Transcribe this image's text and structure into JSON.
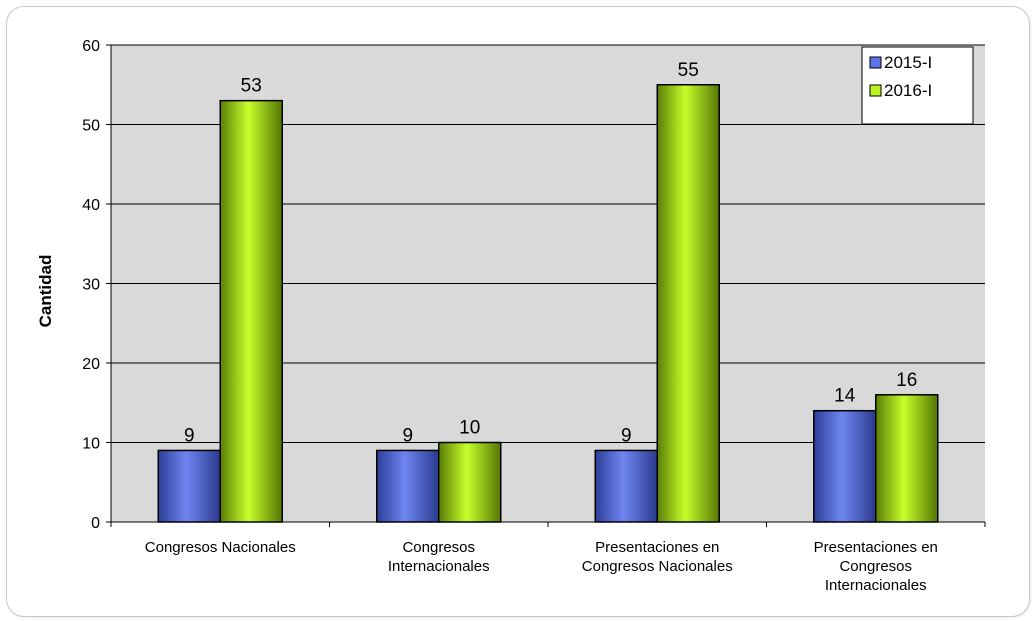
{
  "chart_data": {
    "type": "bar",
    "ylabel": "Cantidad",
    "xlabel": "",
    "ylim": [
      0,
      60
    ],
    "yticks": [
      0,
      10,
      20,
      30,
      40,
      50,
      60
    ],
    "grid": true,
    "legend_position": "top-right",
    "categories": [
      [
        "Congresos Nacionales"
      ],
      [
        "Congresos",
        "Internacionales"
      ],
      [
        "Presentaciones en",
        "Congresos Nacionales"
      ],
      [
        "Presentaciones en",
        "Congresos",
        "Internacionales"
      ]
    ],
    "series": [
      {
        "name": "2015-I",
        "values": [
          9,
          9,
          9,
          14
        ],
        "color": "#5b74e8"
      },
      {
        "name": "2016-I",
        "values": [
          53,
          10,
          55,
          16
        ],
        "color": "#b9f522"
      }
    ]
  }
}
